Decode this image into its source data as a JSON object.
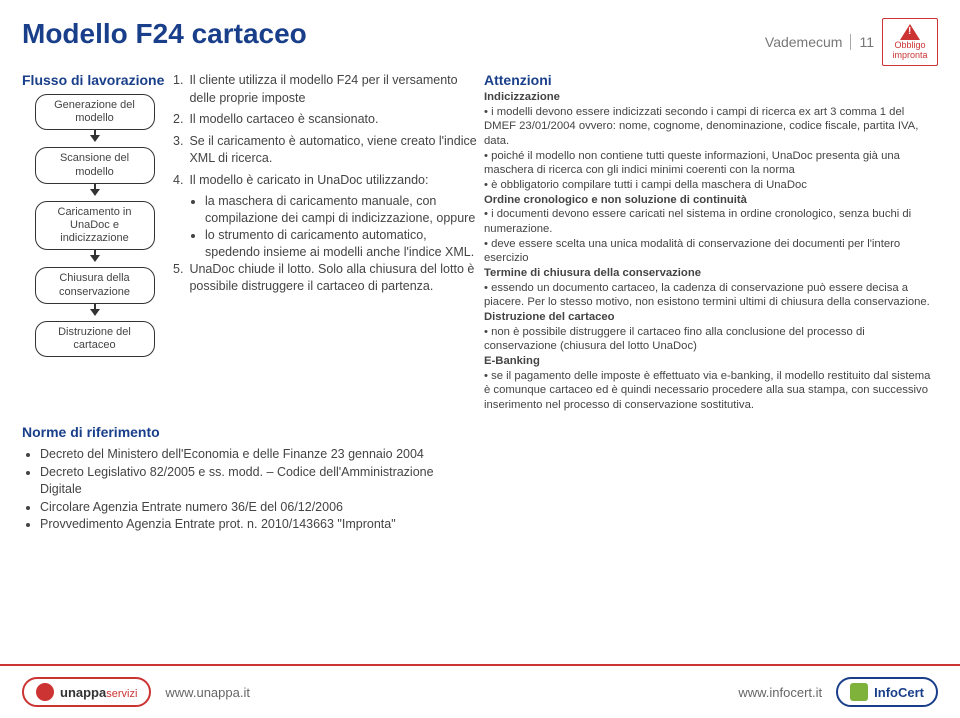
{
  "header": {
    "title": "Modello F24 cartaceo",
    "breadcrumb_label": "Vademecum",
    "page_number": "11",
    "warn_line1": "Obbligo",
    "warn_line2": "impronta"
  },
  "flow": {
    "title": "Flusso di lavorazione",
    "nodes": [
      "Generazione del modello",
      "Scansione del modello",
      "Caricamento in UnaDoc e indicizzazione",
      "Chiusura della conservazione",
      "Distruzione del cartaceo"
    ]
  },
  "steps": {
    "items": [
      {
        "n": "1.",
        "text": "Il cliente utilizza il modello F24 per il versamento delle proprie imposte"
      },
      {
        "n": "2.",
        "text": "Il modello cartaceo è scansionato."
      },
      {
        "n": "3.",
        "text": "Se il caricamento è automatico, viene creato l'indice XML di ricerca."
      },
      {
        "n": "4.",
        "text": "Il modello è caricato in UnaDoc utilizzando:",
        "sub": [
          "la maschera di caricamento manuale, con compilazione dei campi di indicizzazione, oppure",
          "lo strumento di caricamento automatico, spedendo insieme ai modelli anche l'indice XML."
        ]
      },
      {
        "n": "5.",
        "text": "UnaDoc chiude il lotto. Solo alla chiusura del lotto è possibile distruggere il cartaceo di partenza."
      }
    ]
  },
  "norme": {
    "title": "Norme di riferimento",
    "items": [
      "Decreto del Ministero dell'Economia e delle Finanze 23 gennaio 2004",
      "Decreto Legislativo 82/2005 e ss. modd. – Codice dell'Amministrazione Digitale",
      "Circolare Agenzia Entrate numero 36/E del 06/12/2006",
      "Provvedimento Agenzia Entrate prot. n. 2010/143663 \"Impronta\""
    ]
  },
  "right": {
    "title": "Attenzioni",
    "sections": [
      {
        "heading": "Indicizzazione",
        "lines": [
          "• i modelli devono essere indicizzati secondo i campi di ricerca ex art 3 comma 1 del DMEF 23/01/2004 ovvero: nome, cognome, denominazione, codice fiscale, partita IVA, data.",
          "• poiché il modello non contiene tutti queste informazioni, UnaDoc presenta già una maschera di ricerca con gli indici minimi coerenti con la norma",
          "• è obbligatorio compilare tutti i campi della maschera di UnaDoc"
        ]
      },
      {
        "heading": "Ordine cronologico e non soluzione di continuità",
        "lines": [
          "• i documenti devono essere caricati nel sistema in ordine cronologico, senza buchi di numerazione.",
          "• deve essere scelta una unica modalità di conservazione dei documenti per l'intero esercizio"
        ]
      },
      {
        "heading": "Termine di chiusura della conservazione",
        "lines": [
          "• essendo un documento cartaceo, la cadenza di conservazione può essere decisa a piacere. Per lo stesso motivo, non esistono termini ultimi di chiusura della conservazione."
        ]
      },
      {
        "heading": "Distruzione del cartaceo",
        "lines": [
          "• non è possibile distruggere il cartaceo fino alla conclusione del processo di conservazione (chiusura del lotto UnaDoc)"
        ]
      },
      {
        "heading": "E-Banking",
        "lines": [
          "• se il pagamento delle imposte è effettuato via e-banking, il modello restituito dal sistema è comunque cartaceo ed è quindi necessario procedere alla sua stampa, con successivo inserimento nel processo di conservazione sostitutiva."
        ]
      }
    ]
  },
  "footer": {
    "brand_left": "unappa",
    "brand_left_sub": "servizi",
    "url_left": "www.unappa.it",
    "url_right": "www.infocert.it",
    "brand_right": "InfoCert"
  },
  "colors": {
    "accent_blue": "#1a3f8a",
    "accent_red": "#c33333",
    "text_body": "#444444",
    "text_muted": "#777777",
    "green": "#7fb23a"
  }
}
